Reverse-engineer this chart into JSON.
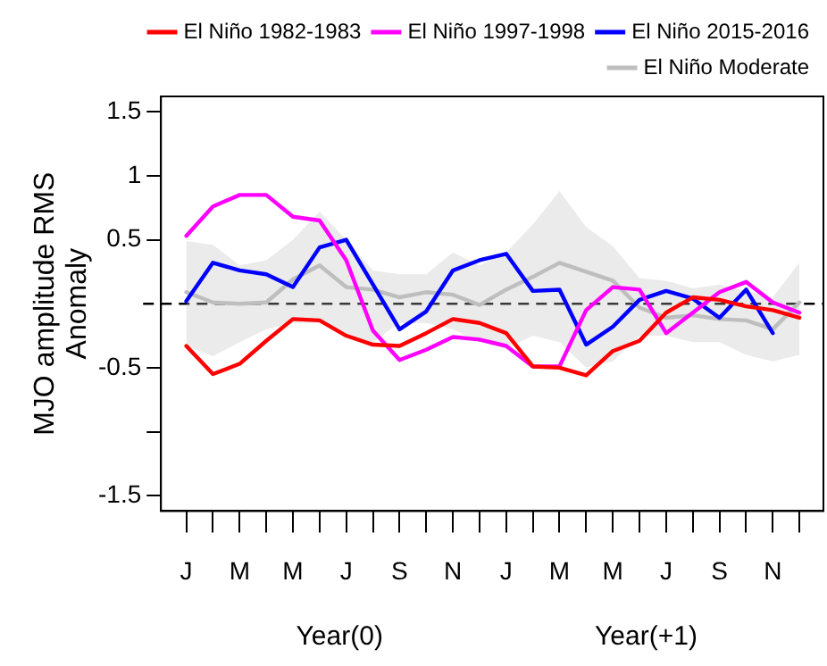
{
  "chart_data": {
    "type": "line",
    "ylabel": "MJO amplitude RMS\nAnomaly",
    "annotations": [
      "Year(0)",
      "Year(+1)"
    ],
    "categories": [
      "J",
      null,
      "M",
      null,
      "M",
      null,
      "J",
      null,
      "S",
      null,
      "N",
      null,
      "J",
      null,
      "M",
      null,
      "M",
      null,
      "J",
      null,
      "S",
      null,
      "N",
      null
    ],
    "ylim": [
      -1.62,
      1.62
    ],
    "yticks": [
      -1.5,
      {
        "value": -1.0,
        "label": null
      },
      -0.5,
      0.5,
      1.0,
      1.5
    ],
    "series": [
      {
        "name": "El Niño 1982-1983",
        "color": "#ff0000",
        "values": [
          -0.33,
          -0.55,
          -0.47,
          -0.29,
          -0.12,
          -0.13,
          -0.25,
          -0.32,
          -0.33,
          -0.23,
          -0.12,
          -0.15,
          -0.23,
          -0.49,
          -0.5,
          -0.56,
          -0.37,
          -0.29,
          -0.07,
          0.05,
          0.03,
          -0.02,
          -0.05,
          -0.11
        ]
      },
      {
        "name": "El Niño 1997-1998",
        "color": "#ff00ff",
        "values": [
          0.53,
          0.76,
          0.85,
          0.85,
          0.68,
          0.65,
          0.34,
          -0.21,
          -0.44,
          -0.36,
          -0.26,
          -0.28,
          -0.33,
          -0.49,
          -0.49,
          -0.05,
          0.13,
          0.11,
          -0.23,
          -0.07,
          0.09,
          0.17,
          0.01,
          -0.07
        ]
      },
      {
        "name": "El Niño 2015-2016",
        "color": "#0000ff",
        "values": [
          0.02,
          0.32,
          0.26,
          0.23,
          0.13,
          0.44,
          0.5,
          0.15,
          -0.2,
          -0.06,
          0.26,
          0.34,
          0.39,
          0.1,
          0.11,
          -0.32,
          -0.18,
          0.03,
          0.1,
          0.04,
          -0.11,
          0.11,
          -0.23,
          null
        ]
      },
      {
        "name": "El Niño Moderate",
        "color": "#bebebe",
        "values": [
          0.09,
          0.01,
          0,
          0.01,
          0.19,
          0.3,
          0.13,
          0.11,
          0.05,
          0.09,
          0.07,
          -0.01,
          0.11,
          0.21,
          0.32,
          0.25,
          0.18,
          -0.03,
          -0.11,
          -0.09,
          -0.12,
          -0.13,
          -0.2,
          0.01
        ],
        "lower": [
          -0.33,
          -0.41,
          -0.3,
          -0.2,
          -0.15,
          -0.15,
          -0.25,
          -0.3,
          -0.15,
          -0.15,
          -0.2,
          -0.3,
          -0.35,
          -0.25,
          -0.3,
          -0.5,
          -0.45,
          -0.25,
          -0.25,
          -0.3,
          -0.3,
          -0.4,
          -0.45,
          -0.4
        ],
        "upper": [
          0.49,
          0.46,
          0.3,
          0.34,
          0.5,
          0.72,
          0.5,
          0.26,
          0.23,
          0.23,
          0.4,
          0.3,
          0.4,
          0.62,
          0.88,
          0.6,
          0.45,
          0.2,
          0.18,
          0.12,
          0.15,
          0.1,
          0.05,
          0.32
        ]
      }
    ],
    "ref_lines": [
      {
        "axis": "y",
        "value": 0,
        "label": null,
        "color": "#000000",
        "line_style": "dashed"
      }
    ],
    "grid": false,
    "legend": "top right",
    "marker": "none",
    "line_style": "solid"
  }
}
